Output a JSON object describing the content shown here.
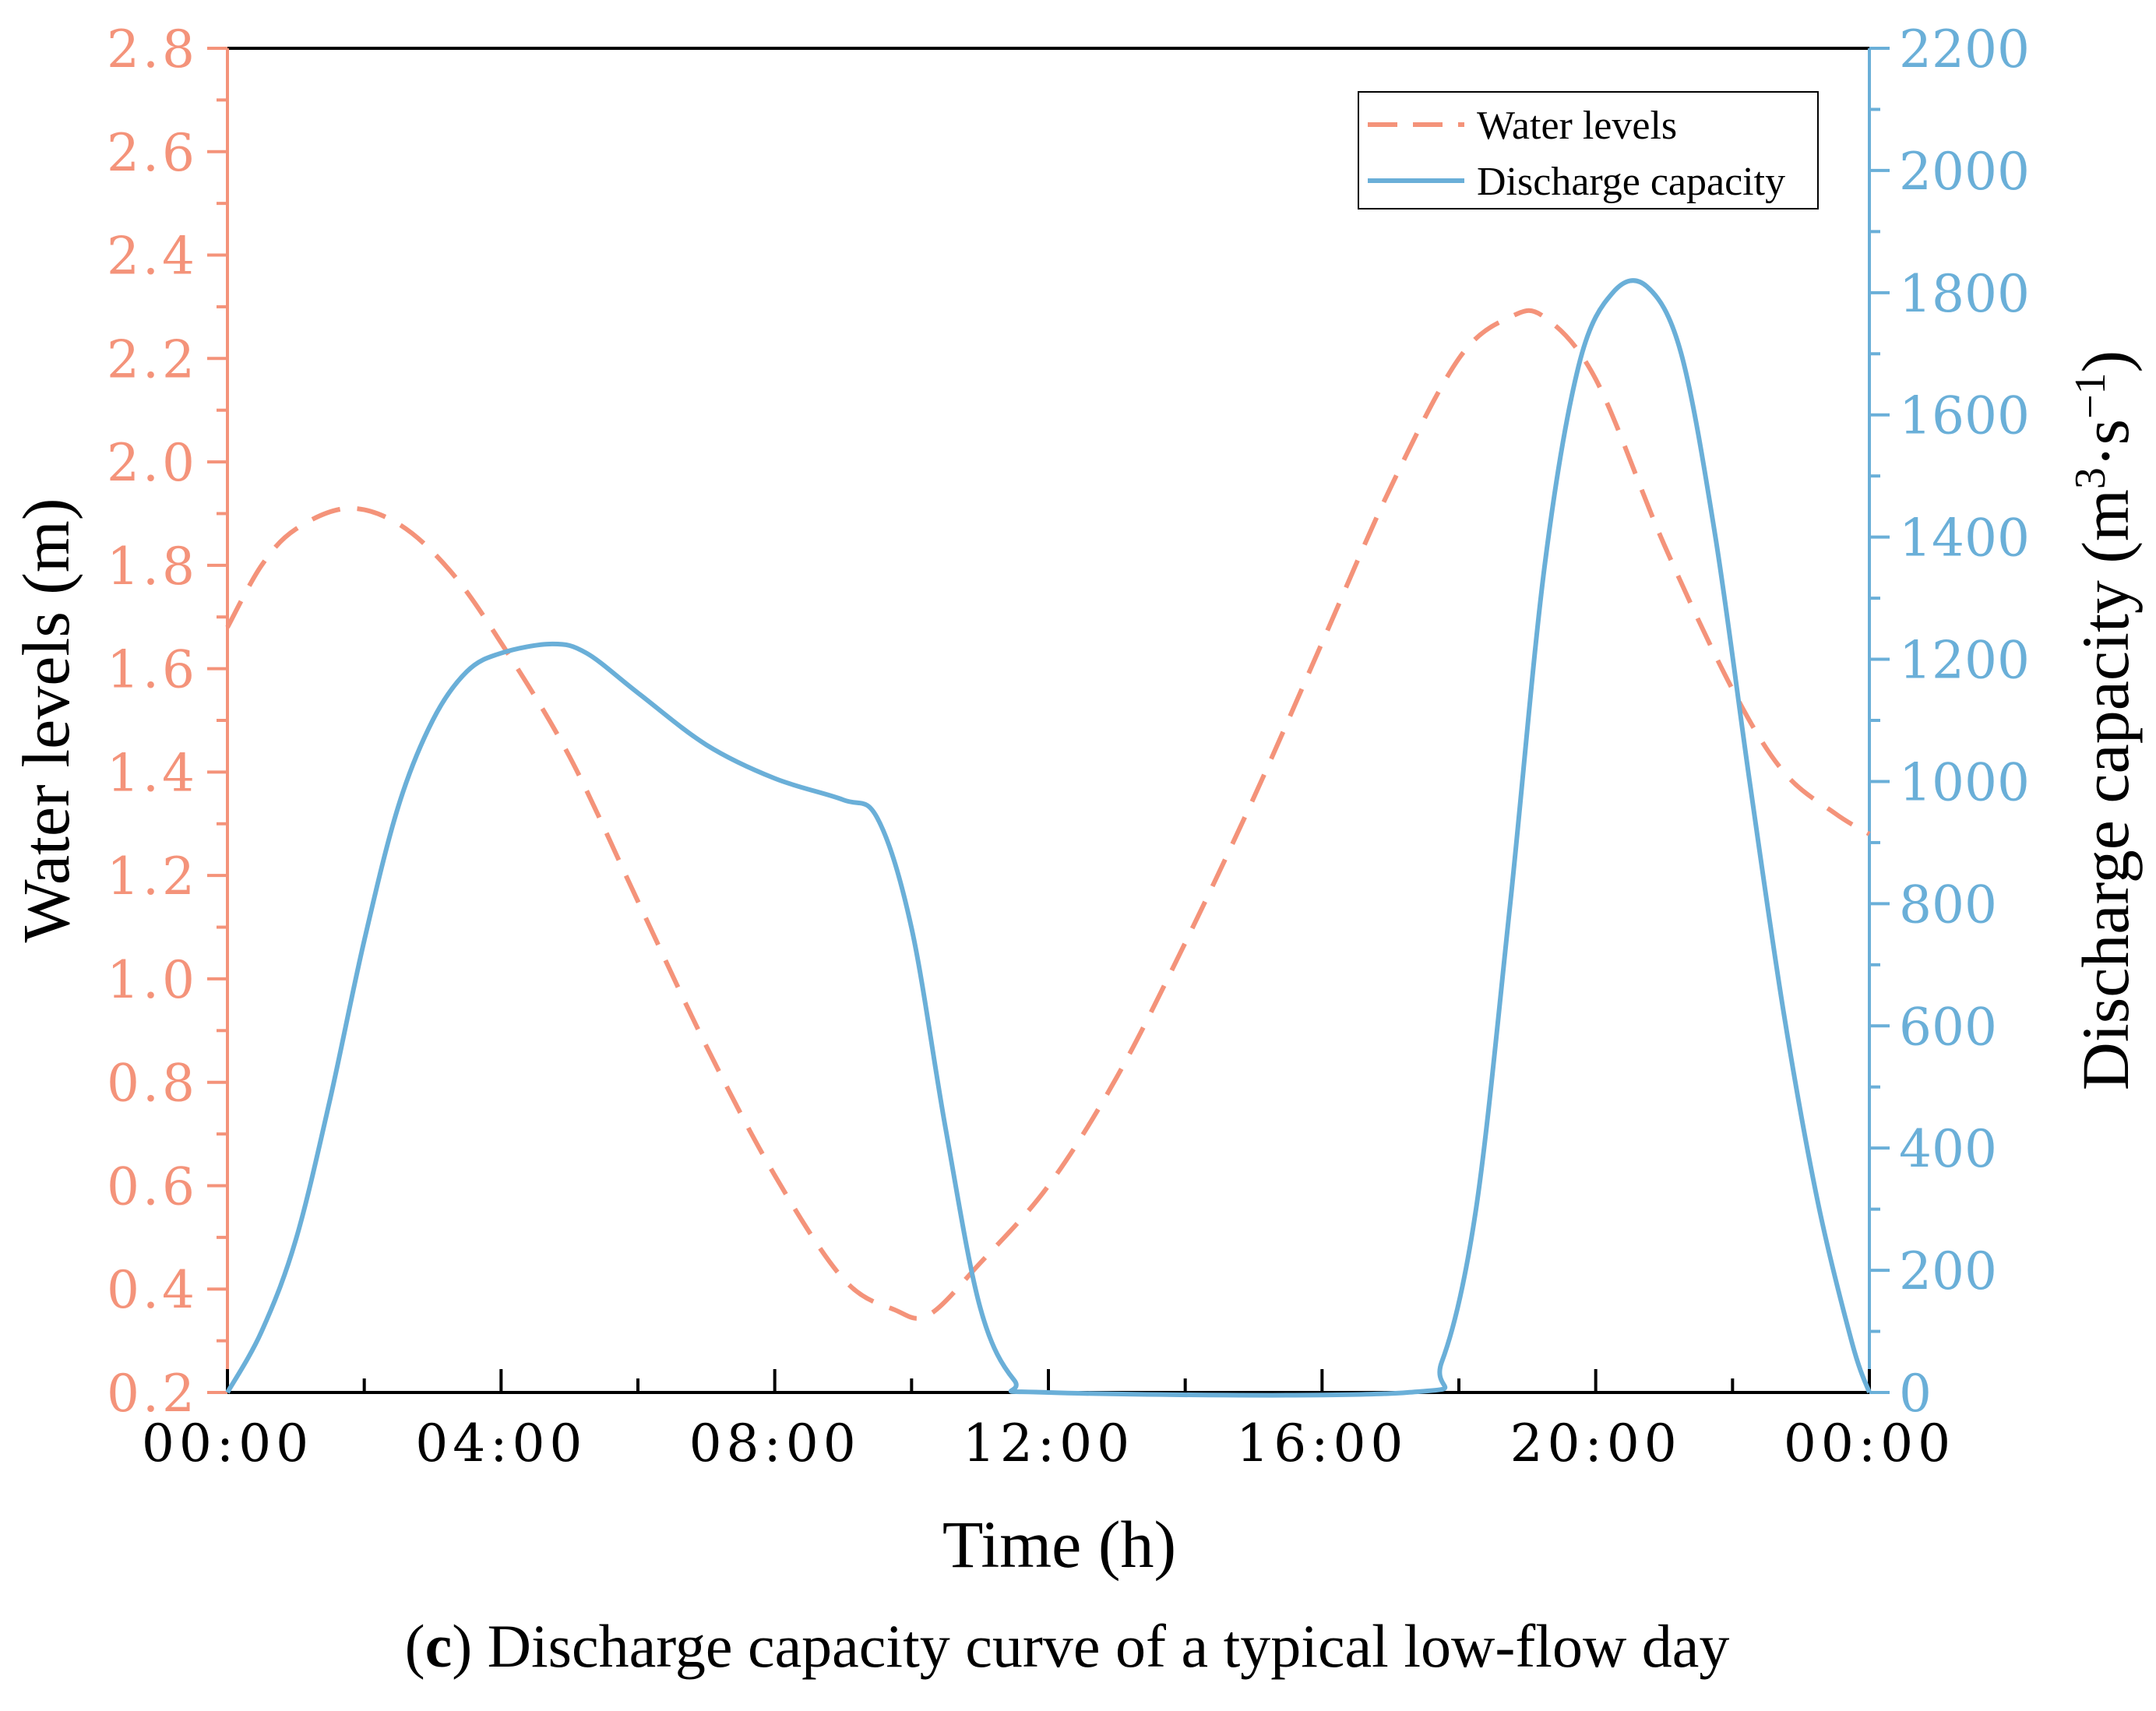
{
  "chart_data": {
    "type": "line",
    "caption": {
      "open": "(",
      "letter": "c",
      "rest": ") Discharge capacity curve of a typical low-flow day"
    },
    "xlabel": "Time (h)",
    "x_ticks": [
      "00:00",
      "04:00",
      "08:00",
      "12:00",
      "16:00",
      "20:00",
      "00:00"
    ],
    "x_range_hours": [
      0,
      24
    ],
    "y_left": {
      "label": "Water levels (m)",
      "range": [
        0.2,
        2.8
      ],
      "ticks": [
        "0.2",
        "0.4",
        "0.6",
        "0.8",
        "1.0",
        "1.2",
        "1.4",
        "1.6",
        "1.8",
        "2.0",
        "2.2",
        "2.4",
        "2.6",
        "2.8"
      ],
      "color": "#F4937A"
    },
    "y_right": {
      "label_main": "Discharge capacity (m",
      "label_sup3": "3",
      "label_mid": "·s",
      "label_sup_neg1": "−1",
      "label_end": ")",
      "range": [
        0,
        2200
      ],
      "ticks": [
        "0",
        "200",
        "400",
        "600",
        "800",
        "1000",
        "1200",
        "1400",
        "1600",
        "1800",
        "2000",
        "2200"
      ],
      "color": "#6AAFD8"
    },
    "legend": {
      "position": "top-right",
      "entries": [
        "Water levels",
        "Discharge capacity"
      ]
    },
    "series": [
      {
        "name": "Water levels",
        "axis": "left",
        "style": "dashed",
        "color": "#F4937A",
        "points": [
          [
            0,
            1.68
          ],
          [
            0.5,
            1.8
          ],
          [
            1,
            1.87
          ],
          [
            1.75,
            1.91
          ],
          [
            2.5,
            1.88
          ],
          [
            3.25,
            1.79
          ],
          [
            4,
            1.65
          ],
          [
            5,
            1.43
          ],
          [
            6,
            1.15
          ],
          [
            7,
            0.87
          ],
          [
            8,
            0.62
          ],
          [
            9,
            0.42
          ],
          [
            9.75,
            0.36
          ],
          [
            10.25,
            0.35
          ],
          [
            11,
            0.45
          ],
          [
            12,
            0.6
          ],
          [
            13,
            0.81
          ],
          [
            14,
            1.07
          ],
          [
            15,
            1.35
          ],
          [
            16,
            1.65
          ],
          [
            17,
            1.95
          ],
          [
            18,
            2.2
          ],
          [
            18.75,
            2.28
          ],
          [
            19.25,
            2.28
          ],
          [
            20,
            2.16
          ],
          [
            21,
            1.84
          ],
          [
            22,
            1.56
          ],
          [
            22.75,
            1.4
          ],
          [
            23.5,
            1.32
          ],
          [
            24,
            1.28
          ]
        ]
      },
      {
        "name": "Discharge capacity",
        "axis": "right",
        "style": "solid",
        "color": "#6AAFD8",
        "points": [
          [
            0,
            0
          ],
          [
            0.5,
            100
          ],
          [
            1,
            250
          ],
          [
            1.5,
            480
          ],
          [
            2,
            740
          ],
          [
            2.5,
            960
          ],
          [
            3,
            1100
          ],
          [
            3.5,
            1180
          ],
          [
            4,
            1210
          ],
          [
            4.75,
            1225
          ],
          [
            5.25,
            1210
          ],
          [
            6,
            1145
          ],
          [
            7,
            1060
          ],
          [
            8,
            1005
          ],
          [
            9,
            970
          ],
          [
            9.5,
            940
          ],
          [
            10,
            760
          ],
          [
            10.5,
            430
          ],
          [
            11,
            140
          ],
          [
            11.5,
            20
          ],
          [
            12,
            0
          ],
          [
            17.25,
            0
          ],
          [
            17.75,
            50
          ],
          [
            18.25,
            300
          ],
          [
            18.75,
            800
          ],
          [
            19.25,
            1350
          ],
          [
            19.75,
            1680
          ],
          [
            20.25,
            1800
          ],
          [
            20.75,
            1810
          ],
          [
            21.25,
            1700
          ],
          [
            21.75,
            1400
          ],
          [
            22.25,
            1000
          ],
          [
            22.75,
            620
          ],
          [
            23.25,
            310
          ],
          [
            23.75,
            80
          ],
          [
            24,
            0
          ]
        ]
      }
    ]
  }
}
